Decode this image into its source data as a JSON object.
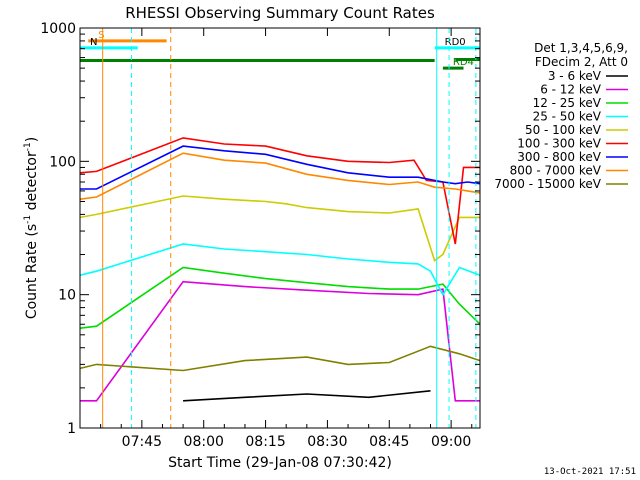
{
  "chart_data": {
    "type": "line",
    "title": "RHESSI Observing Summary Count Rates",
    "xlabel": "Start Time (29-Jan-08 07:30:42)",
    "ylabel_main": "Count Rate (s",
    "ylabel_sup1": "-1",
    "ylabel_mid": " detector",
    "ylabel_sup2": "-1",
    "ylabel_end": ")",
    "y_scale": "log",
    "ylim": [
      1,
      1000
    ],
    "xlim_minutes": [
      0,
      97
    ],
    "x_ticks": [
      {
        "t": 15,
        "label": "07:45"
      },
      {
        "t": 30,
        "label": "08:00"
      },
      {
        "t": 45,
        "label": "08:15"
      },
      {
        "t": 60,
        "label": "08:30"
      },
      {
        "t": 75,
        "label": "08:45"
      },
      {
        "t": 90,
        "label": "09:00"
      }
    ],
    "y_ticks": [
      {
        "v": 1,
        "label": "1"
      },
      {
        "v": 10,
        "label": "10"
      },
      {
        "v": 100,
        "label": "100"
      },
      {
        "v": 1000,
        "label": "1000"
      }
    ],
    "legend_header": [
      "Det 1,3,4,5,6,9,",
      "FDecim 2, Att 0"
    ],
    "legend_position": "right",
    "series": [
      {
        "name": "3 - 6 keV",
        "color": "#000000",
        "points": [
          [
            25,
            1.6
          ],
          [
            40,
            1.7
          ],
          [
            55,
            1.8
          ],
          [
            70,
            1.7
          ],
          [
            85,
            1.9
          ]
        ]
      },
      {
        "name": "6 - 12 keV",
        "color": "#dd00dd",
        "points": [
          [
            0,
            1.6
          ],
          [
            4,
            1.6
          ],
          [
            25,
            12.5
          ],
          [
            40,
            11.5
          ],
          [
            55,
            10.8
          ],
          [
            70,
            10.2
          ],
          [
            82,
            10.0
          ],
          [
            88,
            11.0
          ],
          [
            91,
            1.6
          ],
          [
            97,
            1.6
          ]
        ]
      },
      {
        "name": "12 - 25 keV",
        "color": "#00dd00",
        "points": [
          [
            0,
            5.6
          ],
          [
            4,
            5.8
          ],
          [
            25,
            16
          ],
          [
            35,
            14.5
          ],
          [
            45,
            13.2
          ],
          [
            55,
            12.3
          ],
          [
            65,
            11.5
          ],
          [
            75,
            11
          ],
          [
            82,
            11
          ],
          [
            88,
            12
          ],
          [
            92,
            8.5
          ],
          [
            97,
            6
          ]
        ]
      },
      {
        "name": "25 - 50 keV",
        "color": "#00ffff",
        "points": [
          [
            0,
            14
          ],
          [
            4,
            15
          ],
          [
            25,
            24
          ],
          [
            35,
            22
          ],
          [
            45,
            21
          ],
          [
            55,
            20
          ],
          [
            65,
            18.5
          ],
          [
            75,
            17.5
          ],
          [
            82,
            17
          ],
          [
            85,
            15
          ],
          [
            88,
            10
          ],
          [
            92,
            16
          ],
          [
            97,
            14
          ]
        ]
      },
      {
        "name": "50 - 100 keV",
        "color": "#cccc00",
        "points": [
          [
            0,
            38
          ],
          [
            4,
            40
          ],
          [
            25,
            55
          ],
          [
            35,
            52
          ],
          [
            45,
            50
          ],
          [
            50,
            48
          ],
          [
            55,
            45
          ],
          [
            65,
            42
          ],
          [
            75,
            41
          ],
          [
            82,
            44
          ],
          [
            86,
            18
          ],
          [
            88,
            20
          ],
          [
            92,
            38
          ],
          [
            97,
            38
          ]
        ]
      },
      {
        "name": "100 - 300 keV",
        "color": "#ff0000",
        "points": [
          [
            0,
            82
          ],
          [
            4,
            84
          ],
          [
            25,
            150
          ],
          [
            35,
            135
          ],
          [
            45,
            130
          ],
          [
            55,
            110
          ],
          [
            65,
            100
          ],
          [
            75,
            98
          ],
          [
            81,
            102
          ],
          [
            84,
            72
          ],
          [
            88,
            70
          ],
          [
            91,
            24
          ],
          [
            93,
            90
          ],
          [
            97,
            90
          ]
        ]
      },
      {
        "name": "300 - 800 keV",
        "color": "#0000ff",
        "points": [
          [
            0,
            62
          ],
          [
            4,
            62
          ],
          [
            25,
            130
          ],
          [
            35,
            120
          ],
          [
            45,
            113
          ],
          [
            55,
            95
          ],
          [
            65,
            82
          ],
          [
            75,
            76
          ],
          [
            82,
            76
          ],
          [
            88,
            70
          ],
          [
            91,
            68
          ],
          [
            94,
            70
          ],
          [
            97,
            68
          ]
        ]
      },
      {
        "name": "800 - 7000 keV",
        "color": "#ff8800",
        "points": [
          [
            0,
            52
          ],
          [
            4,
            54
          ],
          [
            25,
            115
          ],
          [
            35,
            102
          ],
          [
            45,
            97
          ],
          [
            55,
            80
          ],
          [
            65,
            72
          ],
          [
            75,
            67
          ],
          [
            82,
            70
          ],
          [
            86,
            64
          ],
          [
            91,
            62
          ],
          [
            94,
            60
          ],
          [
            97,
            58
          ]
        ]
      },
      {
        "name": "7000 - 15000 keV",
        "color": "#808000",
        "points": [
          [
            0,
            2.8
          ],
          [
            4,
            3.0
          ],
          [
            25,
            2.7
          ],
          [
            40,
            3.2
          ],
          [
            55,
            3.4
          ],
          [
            65,
            3.0
          ],
          [
            75,
            3.1
          ],
          [
            85,
            4.1
          ],
          [
            92,
            3.6
          ],
          [
            97,
            3.2
          ]
        ]
      }
    ],
    "flag_bars": [
      {
        "label": "S",
        "color": "#ff8800",
        "t0": 2,
        "t1": 21,
        "v": 800
      },
      {
        "label": "N",
        "color": "#00ffff",
        "t0": 0,
        "t1": 14,
        "v": 710
      },
      {
        "label": "",
        "color": "#008000",
        "t0": 0,
        "t1": 86,
        "v": 570
      },
      {
        "label": "RD0",
        "color": "#00ffff",
        "t0": 86,
        "t1": 97,
        "v": 710
      },
      {
        "label": "",
        "color": "#008000",
        "t0": 91,
        "t1": 97,
        "v": 580
      },
      {
        "label": "RD4",
        "color": "#008000",
        "t0": 88,
        "t1": 93,
        "v": 500
      }
    ],
    "vertical_markers": [
      {
        "t": 5.5,
        "color": "#ff8800",
        "style": "solid"
      },
      {
        "t": 12.5,
        "color": "#00ffff",
        "style": "dashed"
      },
      {
        "t": 22,
        "color": "#ff8800",
        "style": "dashed"
      },
      {
        "t": 86.5,
        "color": "#00ffff",
        "style": "solid"
      },
      {
        "t": 89.5,
        "color": "#00ffff",
        "style": "dashed"
      },
      {
        "t": 96,
        "color": "#00ffff",
        "style": "dashed"
      }
    ],
    "data_gap_minutes": [
      5,
      24
    ]
  },
  "footer_timestamp": "13-Oct-2021 17:51"
}
